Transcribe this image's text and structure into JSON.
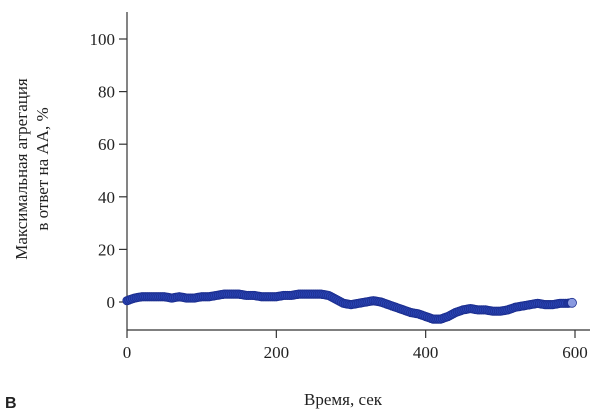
{
  "chart_data": {
    "type": "scatter",
    "panel_label": "B",
    "xlabel": "Время, сек",
    "ylabel_lines": [
      "Максимальная агрегация",
      "в ответ на АА, %"
    ],
    "xlim": [
      0,
      600
    ],
    "ylim": [
      -10,
      110
    ],
    "x_ticks": [
      0,
      200,
      400,
      600
    ],
    "y_ticks": [
      0,
      20,
      40,
      60,
      80,
      100
    ],
    "grid": false,
    "marker_color": "#2a44b4",
    "marker_edge_color": "#1c2f90",
    "last_marker_color": "#8a9ae0",
    "series": [
      {
        "points": [
          [
            0,
            0.5
          ],
          [
            10,
            1.5
          ],
          [
            20,
            2
          ],
          [
            30,
            2
          ],
          [
            40,
            2
          ],
          [
            50,
            2
          ],
          [
            60,
            1.5
          ],
          [
            70,
            2
          ],
          [
            80,
            1.5
          ],
          [
            90,
            1.5
          ],
          [
            100,
            2
          ],
          [
            110,
            2
          ],
          [
            120,
            2.5
          ],
          [
            130,
            3
          ],
          [
            140,
            3
          ],
          [
            150,
            3
          ],
          [
            160,
            2.5
          ],
          [
            170,
            2.5
          ],
          [
            180,
            2
          ],
          [
            190,
            2
          ],
          [
            200,
            2
          ],
          [
            210,
            2.5
          ],
          [
            220,
            2.5
          ],
          [
            230,
            3
          ],
          [
            240,
            3
          ],
          [
            250,
            3
          ],
          [
            260,
            3
          ],
          [
            270,
            2.5
          ],
          [
            280,
            1
          ],
          [
            290,
            -0.5
          ],
          [
            300,
            -1
          ],
          [
            310,
            -0.5
          ],
          [
            320,
            0
          ],
          [
            330,
            0.5
          ],
          [
            340,
            0
          ],
          [
            350,
            -1
          ],
          [
            360,
            -2
          ],
          [
            370,
            -3
          ],
          [
            380,
            -4
          ],
          [
            390,
            -4.5
          ],
          [
            400,
            -5.5
          ],
          [
            410,
            -6.5
          ],
          [
            420,
            -6.5
          ],
          [
            430,
            -5.5
          ],
          [
            440,
            -4
          ],
          [
            450,
            -3
          ],
          [
            460,
            -2.5
          ],
          [
            470,
            -3
          ],
          [
            480,
            -3
          ],
          [
            490,
            -3.5
          ],
          [
            500,
            -3.5
          ],
          [
            510,
            -3
          ],
          [
            520,
            -2
          ],
          [
            530,
            -1.5
          ],
          [
            540,
            -1
          ],
          [
            550,
            -0.5
          ],
          [
            560,
            -1
          ],
          [
            570,
            -1
          ],
          [
            580,
            -0.5
          ],
          [
            590,
            -0.5
          ],
          [
            596,
            -0.3
          ]
        ]
      }
    ]
  }
}
